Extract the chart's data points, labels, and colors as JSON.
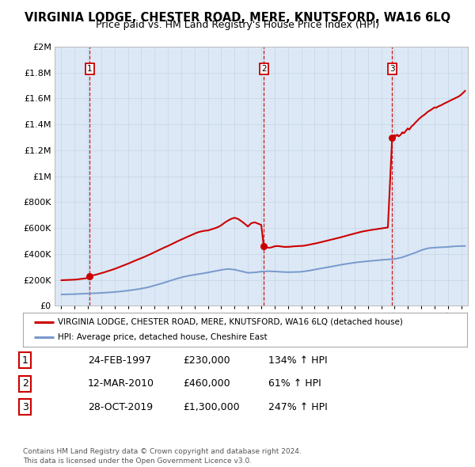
{
  "title": "VIRGINIA LODGE, CHESTER ROAD, MERE, KNUTSFORD, WA16 6LQ",
  "subtitle": "Price paid vs. HM Land Registry's House Price Index (HPI)",
  "title_fontsize": 10.5,
  "subtitle_fontsize": 9,
  "xlim": [
    1994.5,
    2025.5
  ],
  "ylim": [
    0,
    2000000
  ],
  "yticks": [
    0,
    200000,
    400000,
    600000,
    800000,
    1000000,
    1200000,
    1400000,
    1600000,
    1800000,
    2000000
  ],
  "ytick_labels": [
    "£0",
    "£200K",
    "£400K",
    "£600K",
    "£800K",
    "£1M",
    "£1.2M",
    "£1.4M",
    "£1.6M",
    "£1.8M",
    "£2M"
  ],
  "xticks": [
    1995,
    1996,
    1997,
    1998,
    1999,
    2000,
    2001,
    2002,
    2003,
    2004,
    2005,
    2006,
    2007,
    2008,
    2009,
    2010,
    2011,
    2012,
    2013,
    2014,
    2015,
    2016,
    2017,
    2018,
    2019,
    2020,
    2021,
    2022,
    2023,
    2024,
    2025
  ],
  "sale_dates": [
    1997.14,
    2010.19,
    2019.82
  ],
  "sale_prices": [
    230000,
    460000,
    1300000
  ],
  "sale_labels": [
    "1",
    "2",
    "3"
  ],
  "vline_color": "#cc0000",
  "dot_color": "#cc0000",
  "hpi_line_color": "#7799cc",
  "price_line_color": "#cc0000",
  "background_color": "#dce8f5",
  "grid_color": "#c8d8e8",
  "legend_line1": "VIRGINIA LODGE, CHESTER ROAD, MERE, KNUTSFORD, WA16 6LQ (detached house)",
  "legend_line2": "HPI: Average price, detached house, Cheshire East",
  "table_entries": [
    {
      "num": "1",
      "date": "24-FEB-1997",
      "price": "£230,000",
      "hpi": "134% ↑ HPI"
    },
    {
      "num": "2",
      "date": "12-MAR-2010",
      "price": "£460,000",
      "hpi": "61% ↑ HPI"
    },
    {
      "num": "3",
      "date": "28-OCT-2019",
      "price": "£1,300,000",
      "hpi": "247% ↑ HPI"
    }
  ],
  "footer": "Contains HM Land Registry data © Crown copyright and database right 2024.\nThis data is licensed under the Open Government Licence v3.0.",
  "hpi_points": [
    [
      1995,
      88000
    ],
    [
      1995.5,
      89000
    ],
    [
      1996,
      91000
    ],
    [
      1996.5,
      93000
    ],
    [
      1997,
      95000
    ],
    [
      1997.5,
      97000
    ],
    [
      1998,
      100000
    ],
    [
      1998.5,
      103000
    ],
    [
      1999,
      107000
    ],
    [
      1999.5,
      112000
    ],
    [
      2000,
      118000
    ],
    [
      2000.5,
      125000
    ],
    [
      2001,
      133000
    ],
    [
      2001.5,
      143000
    ],
    [
      2002,
      158000
    ],
    [
      2002.5,
      172000
    ],
    [
      2003,
      188000
    ],
    [
      2003.5,
      205000
    ],
    [
      2004,
      220000
    ],
    [
      2004.5,
      232000
    ],
    [
      2005,
      240000
    ],
    [
      2005.5,
      248000
    ],
    [
      2006,
      258000
    ],
    [
      2006.5,
      268000
    ],
    [
      2007,
      278000
    ],
    [
      2007.5,
      285000
    ],
    [
      2008,
      280000
    ],
    [
      2008.5,
      268000
    ],
    [
      2009,
      255000
    ],
    [
      2009.5,
      258000
    ],
    [
      2010,
      265000
    ],
    [
      2010.5,
      268000
    ],
    [
      2011,
      266000
    ],
    [
      2011.5,
      262000
    ],
    [
      2012,
      260000
    ],
    [
      2012.5,
      261000
    ],
    [
      2013,
      263000
    ],
    [
      2013.5,
      270000
    ],
    [
      2014,
      280000
    ],
    [
      2014.5,
      290000
    ],
    [
      2015,
      298000
    ],
    [
      2015.5,
      308000
    ],
    [
      2016,
      318000
    ],
    [
      2016.5,
      326000
    ],
    [
      2017,
      334000
    ],
    [
      2017.5,
      340000
    ],
    [
      2018,
      345000
    ],
    [
      2018.5,
      350000
    ],
    [
      2019,
      355000
    ],
    [
      2019.5,
      358000
    ],
    [
      2020,
      362000
    ],
    [
      2020.5,
      372000
    ],
    [
      2021,
      390000
    ],
    [
      2021.5,
      408000
    ],
    [
      2022,
      430000
    ],
    [
      2022.5,
      445000
    ],
    [
      2023,
      450000
    ],
    [
      2023.5,
      452000
    ],
    [
      2024,
      455000
    ],
    [
      2024.5,
      460000
    ],
    [
      2025,
      462000
    ]
  ],
  "price_points": [
    [
      1995,
      198000
    ],
    [
      1995.5,
      200000
    ],
    [
      1996,
      202000
    ],
    [
      1996.5,
      208000
    ],
    [
      1997.0,
      215000
    ],
    [
      1997.14,
      230000
    ],
    [
      1997.5,
      238000
    ],
    [
      1998,
      252000
    ],
    [
      1998.5,
      268000
    ],
    [
      1999,
      285000
    ],
    [
      1999.5,
      305000
    ],
    [
      2000,
      325000
    ],
    [
      2000.5,
      348000
    ],
    [
      2001,
      368000
    ],
    [
      2001.5,
      390000
    ],
    [
      2002,
      415000
    ],
    [
      2002.5,
      440000
    ],
    [
      2003,
      462000
    ],
    [
      2003.5,
      488000
    ],
    [
      2004,
      512000
    ],
    [
      2004.5,
      535000
    ],
    [
      2005,
      558000
    ],
    [
      2005.25,
      568000
    ],
    [
      2005.5,
      575000
    ],
    [
      2005.75,
      580000
    ],
    [
      2006,
      582000
    ],
    [
      2006.25,
      590000
    ],
    [
      2006.5,
      598000
    ],
    [
      2006.75,
      608000
    ],
    [
      2007,
      622000
    ],
    [
      2007.25,
      642000
    ],
    [
      2007.5,
      658000
    ],
    [
      2007.75,
      672000
    ],
    [
      2008.0,
      680000
    ],
    [
      2008.25,
      672000
    ],
    [
      2008.5,
      655000
    ],
    [
      2008.75,
      635000
    ],
    [
      2009.0,
      612000
    ],
    [
      2009.25,
      638000
    ],
    [
      2009.5,
      645000
    ],
    [
      2009.75,
      635000
    ],
    [
      2010.0,
      625000
    ],
    [
      2010.19,
      460000
    ],
    [
      2010.4,
      452000
    ],
    [
      2010.6,
      448000
    ],
    [
      2010.8,
      452000
    ],
    [
      2011.0,
      460000
    ],
    [
      2011.25,
      462000
    ],
    [
      2011.5,
      458000
    ],
    [
      2011.75,
      455000
    ],
    [
      2012.0,
      455000
    ],
    [
      2012.25,
      458000
    ],
    [
      2012.5,
      460000
    ],
    [
      2012.75,
      462000
    ],
    [
      2013.0,
      462000
    ],
    [
      2013.25,
      465000
    ],
    [
      2013.5,
      470000
    ],
    [
      2013.75,
      475000
    ],
    [
      2014.0,
      480000
    ],
    [
      2014.5,
      492000
    ],
    [
      2015.0,
      505000
    ],
    [
      2015.5,
      518000
    ],
    [
      2016.0,
      530000
    ],
    [
      2016.5,
      545000
    ],
    [
      2017.0,
      558000
    ],
    [
      2017.5,
      572000
    ],
    [
      2018.0,
      582000
    ],
    [
      2018.5,
      590000
    ],
    [
      2019.0,
      598000
    ],
    [
      2019.5,
      605000
    ],
    [
      2019.82,
      1300000
    ],
    [
      2020.0,
      1318000
    ],
    [
      2020.1,
      1310000
    ],
    [
      2020.2,
      1322000
    ],
    [
      2020.3,
      1308000
    ],
    [
      2020.4,
      1315000
    ],
    [
      2020.5,
      1328000
    ],
    [
      2020.6,
      1340000
    ],
    [
      2020.7,
      1332000
    ],
    [
      2020.8,
      1345000
    ],
    [
      2020.9,
      1358000
    ],
    [
      2021.0,
      1370000
    ],
    [
      2021.1,
      1360000
    ],
    [
      2021.2,
      1375000
    ],
    [
      2021.3,
      1388000
    ],
    [
      2021.4,
      1395000
    ],
    [
      2021.5,
      1408000
    ],
    [
      2021.6,
      1418000
    ],
    [
      2021.7,
      1428000
    ],
    [
      2021.8,
      1440000
    ],
    [
      2021.9,
      1448000
    ],
    [
      2022.0,
      1458000
    ],
    [
      2022.1,
      1465000
    ],
    [
      2022.2,
      1472000
    ],
    [
      2022.3,
      1480000
    ],
    [
      2022.4,
      1490000
    ],
    [
      2022.5,
      1498000
    ],
    [
      2022.6,
      1505000
    ],
    [
      2022.7,
      1510000
    ],
    [
      2022.8,
      1518000
    ],
    [
      2022.9,
      1525000
    ],
    [
      2023.0,
      1532000
    ],
    [
      2023.1,
      1528000
    ],
    [
      2023.2,
      1535000
    ],
    [
      2023.3,
      1540000
    ],
    [
      2023.4,
      1545000
    ],
    [
      2023.5,
      1548000
    ],
    [
      2023.6,
      1555000
    ],
    [
      2023.7,
      1560000
    ],
    [
      2023.8,
      1565000
    ],
    [
      2023.9,
      1570000
    ],
    [
      2024.0,
      1575000
    ],
    [
      2024.1,
      1580000
    ],
    [
      2024.2,
      1585000
    ],
    [
      2024.3,
      1590000
    ],
    [
      2024.4,
      1595000
    ],
    [
      2024.5,
      1600000
    ],
    [
      2024.6,
      1605000
    ],
    [
      2024.7,
      1610000
    ],
    [
      2024.8,
      1615000
    ],
    [
      2024.9,
      1622000
    ],
    [
      2025.0,
      1630000
    ],
    [
      2025.2,
      1650000
    ],
    [
      2025.3,
      1660000
    ]
  ]
}
